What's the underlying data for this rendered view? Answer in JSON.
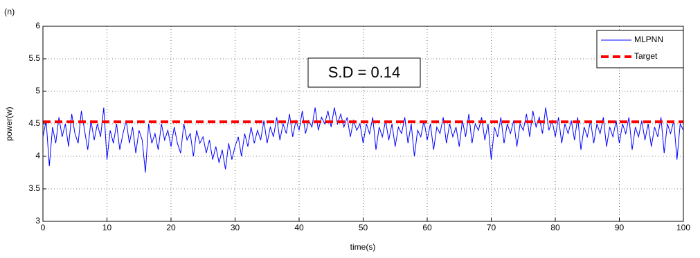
{
  "chart_data": {
    "type": "line",
    "panel_label": "(ก)",
    "annotation": "S.D = 0.14",
    "xlabel": "time(s)",
    "ylabel": "power(w)",
    "xlim": [
      0,
      100
    ],
    "ylim": [
      3,
      6
    ],
    "xticks": [
      0,
      10,
      20,
      30,
      40,
      50,
      60,
      70,
      80,
      90,
      100
    ],
    "yticks": [
      3,
      3.5,
      4,
      4.5,
      5,
      5.5,
      6
    ],
    "grid": true,
    "legend": "upper right",
    "series": [
      {
        "name": "MLPNN",
        "color": "#0000ff",
        "style": "solid",
        "x": [
          0,
          0.5,
          1,
          1.5,
          2,
          2.5,
          3,
          3.5,
          4,
          4.5,
          5,
          5.5,
          6,
          6.5,
          7,
          7.5,
          8,
          8.5,
          9,
          9.5,
          10,
          10.5,
          11,
          11.5,
          12,
          12.5,
          13,
          13.5,
          14,
          14.5,
          15,
          15.5,
          16,
          16.5,
          17,
          17.5,
          18,
          18.5,
          19,
          19.5,
          20,
          20.5,
          21,
          21.5,
          22,
          22.5,
          23,
          23.5,
          24,
          24.5,
          25,
          25.5,
          26,
          26.5,
          27,
          27.5,
          28,
          28.5,
          29,
          29.5,
          30,
          30.5,
          31,
          31.5,
          32,
          32.5,
          33,
          33.5,
          34,
          34.5,
          35,
          35.5,
          36,
          36.5,
          37,
          37.5,
          38,
          38.5,
          39,
          39.5,
          40,
          40.5,
          41,
          41.5,
          42,
          42.5,
          43,
          43.5,
          44,
          44.5,
          45,
          45.5,
          46,
          46.5,
          47,
          47.5,
          48,
          48.5,
          49,
          49.5,
          50,
          50.5,
          51,
          51.5,
          52,
          52.5,
          53,
          53.5,
          54,
          54.5,
          55,
          55.5,
          56,
          56.5,
          57,
          57.5,
          58,
          58.5,
          59,
          59.5,
          60,
          60.5,
          61,
          61.5,
          62,
          62.5,
          63,
          63.5,
          64,
          64.5,
          65,
          65.5,
          66,
          66.5,
          67,
          67.5,
          68,
          68.5,
          69,
          69.5,
          70,
          70.5,
          71,
          71.5,
          72,
          72.5,
          73,
          73.5,
          74,
          74.5,
          75,
          75.5,
          76,
          76.5,
          77,
          77.5,
          78,
          78.5,
          79,
          79.5,
          80,
          80.5,
          81,
          81.5,
          82,
          82.5,
          83,
          83.5,
          84,
          84.5,
          85,
          85.5,
          86,
          86.5,
          87,
          87.5,
          88,
          88.5,
          89,
          89.5,
          90,
          90.5,
          91,
          91.5,
          92,
          92.5,
          93,
          93.5,
          94,
          94.5,
          95,
          95.5,
          96,
          96.5,
          97,
          97.5,
          98,
          98.5,
          99,
          99.5,
          100
        ],
        "values": [
          4.3,
          4.55,
          3.85,
          4.45,
          4.2,
          4.6,
          4.3,
          4.5,
          4.15,
          4.65,
          4.35,
          4.2,
          4.7,
          4.4,
          4.1,
          4.55,
          4.25,
          4.5,
          4.3,
          4.75,
          3.95,
          4.4,
          4.2,
          4.5,
          4.1,
          4.35,
          4.55,
          4.2,
          4.45,
          4.05,
          4.4,
          4.25,
          3.75,
          4.5,
          4.2,
          4.35,
          4.1,
          4.5,
          4.25,
          4.4,
          4.15,
          4.45,
          4.2,
          4.05,
          4.5,
          4.25,
          4.35,
          4.0,
          4.4,
          4.2,
          4.3,
          4.05,
          4.25,
          3.95,
          4.15,
          3.9,
          4.1,
          3.8,
          4.2,
          3.95,
          4.15,
          4.3,
          4.0,
          4.35,
          4.15,
          4.45,
          4.2,
          4.4,
          4.25,
          4.55,
          4.2,
          4.45,
          4.3,
          4.6,
          4.25,
          4.5,
          4.35,
          4.65,
          4.3,
          4.55,
          4.4,
          4.7,
          4.35,
          4.55,
          4.45,
          4.75,
          4.4,
          4.6,
          4.5,
          4.7,
          4.45,
          4.75,
          4.5,
          4.65,
          4.45,
          4.6,
          4.3,
          4.55,
          4.4,
          4.5,
          4.2,
          4.5,
          4.35,
          4.6,
          4.1,
          4.45,
          4.3,
          4.55,
          4.25,
          4.5,
          4.15,
          4.45,
          4.35,
          4.6,
          4.2,
          4.5,
          4.0,
          4.4,
          4.3,
          4.55,
          4.25,
          4.5,
          4.1,
          4.45,
          4.35,
          4.6,
          4.2,
          4.5,
          4.3,
          4.45,
          4.15,
          4.55,
          4.3,
          4.65,
          4.2,
          4.5,
          4.4,
          4.6,
          4.25,
          4.5,
          3.95,
          4.45,
          4.3,
          4.6,
          4.2,
          4.5,
          4.35,
          4.55,
          4.15,
          4.5,
          4.4,
          4.65,
          4.3,
          4.7,
          4.45,
          4.6,
          4.35,
          4.75,
          4.4,
          4.55,
          4.3,
          4.6,
          4.2,
          4.5,
          4.35,
          4.55,
          4.25,
          4.6,
          4.1,
          4.45,
          4.3,
          4.55,
          4.2,
          4.5,
          4.35,
          4.6,
          4.15,
          4.45,
          4.3,
          4.55,
          4.2,
          4.5,
          4.35,
          4.6,
          4.1,
          4.45,
          4.3,
          4.55,
          4.25,
          4.5,
          4.15,
          4.45,
          4.3,
          4.6,
          4.05,
          4.5,
          4.35,
          4.55,
          3.95,
          4.5,
          4.4
        ]
      },
      {
        "name": "Target",
        "color": "#ff0000",
        "style": "dashed",
        "x": [
          0,
          100
        ],
        "values": [
          4.53,
          4.53
        ]
      }
    ]
  }
}
